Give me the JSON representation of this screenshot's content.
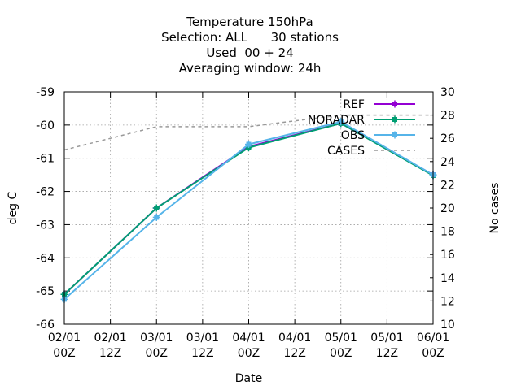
{
  "chart_data": {
    "type": "line",
    "title_lines": [
      "Temperature 150hPa",
      "Selection: ALL      30 stations",
      "Used  00 + 24",
      "Averaging window: 24h"
    ],
    "xlabel": "Date",
    "ylabel": "deg C",
    "y2label": "No cases",
    "x_ticks": [
      [
        "02/01",
        "00Z"
      ],
      [
        "02/01",
        "12Z"
      ],
      [
        "03/01",
        "00Z"
      ],
      [
        "03/01",
        "12Z"
      ],
      [
        "04/01",
        "00Z"
      ],
      [
        "04/01",
        "12Z"
      ],
      [
        "05/01",
        "00Z"
      ],
      [
        "05/01",
        "12Z"
      ],
      [
        "06/01",
        "00Z"
      ]
    ],
    "x": [
      "02/01 00Z",
      "03/01 00Z",
      "04/01 00Z",
      "05/01 00Z",
      "06/01 00Z"
    ],
    "ylim": [
      -66,
      -59
    ],
    "y_ticks": [
      -66,
      -65,
      -64,
      -63,
      -62,
      -61,
      -60,
      -59
    ],
    "y2lim": [
      10,
      30
    ],
    "y2_ticks": [
      10,
      12,
      14,
      16,
      18,
      20,
      22,
      24,
      26,
      28,
      30
    ],
    "grid": true,
    "legend_position": "top-right",
    "series": [
      {
        "name": "REF",
        "axis": "y",
        "color": "#9400d3",
        "dash": false,
        "values": [
          -65.1,
          -62.5,
          -60.65,
          -59.95,
          -61.5
        ]
      },
      {
        "name": "NORADAR",
        "axis": "y",
        "color": "#009e73",
        "dash": false,
        "values": [
          -65.1,
          -62.5,
          -60.68,
          -59.95,
          -61.52
        ]
      },
      {
        "name": "OBS",
        "axis": "y",
        "color": "#56b4e9",
        "dash": false,
        "values": [
          -65.25,
          -62.78,
          -60.58,
          -59.9,
          -61.5
        ]
      },
      {
        "name": "CASES",
        "axis": "y2",
        "color": "#999999",
        "dash": true,
        "values": [
          25,
          27,
          27,
          28,
          28
        ]
      }
    ]
  }
}
